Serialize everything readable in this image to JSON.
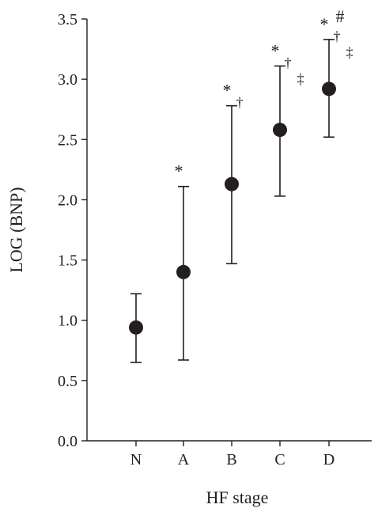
{
  "chart_data": {
    "type": "scatter",
    "xlabel": "HF stage",
    "ylabel": "LOG (BNP)",
    "categories": [
      "N",
      "A",
      "B",
      "C",
      "D"
    ],
    "ylim": [
      0,
      3.5
    ],
    "yticks": [
      "0.0",
      "0.5",
      "1.0",
      "1.5",
      "2.0",
      "2.5",
      "3.0",
      "3.5"
    ],
    "grid": false,
    "series": [
      {
        "mean": [
          0.94,
          1.4,
          2.13,
          2.58,
          2.92
        ],
        "lower": [
          0.65,
          0.67,
          1.47,
          2.03,
          2.52
        ],
        "upper": [
          1.22,
          2.11,
          2.78,
          3.11,
          3.33
        ]
      }
    ],
    "annotations": [
      {
        "category": "A",
        "marks": [
          "*"
        ]
      },
      {
        "category": "B",
        "marks": [
          "*",
          "†"
        ]
      },
      {
        "category": "C",
        "marks": [
          "*",
          "†",
          "‡"
        ]
      },
      {
        "category": "D",
        "marks": [
          "*",
          "#",
          "†",
          "‡"
        ]
      }
    ]
  }
}
